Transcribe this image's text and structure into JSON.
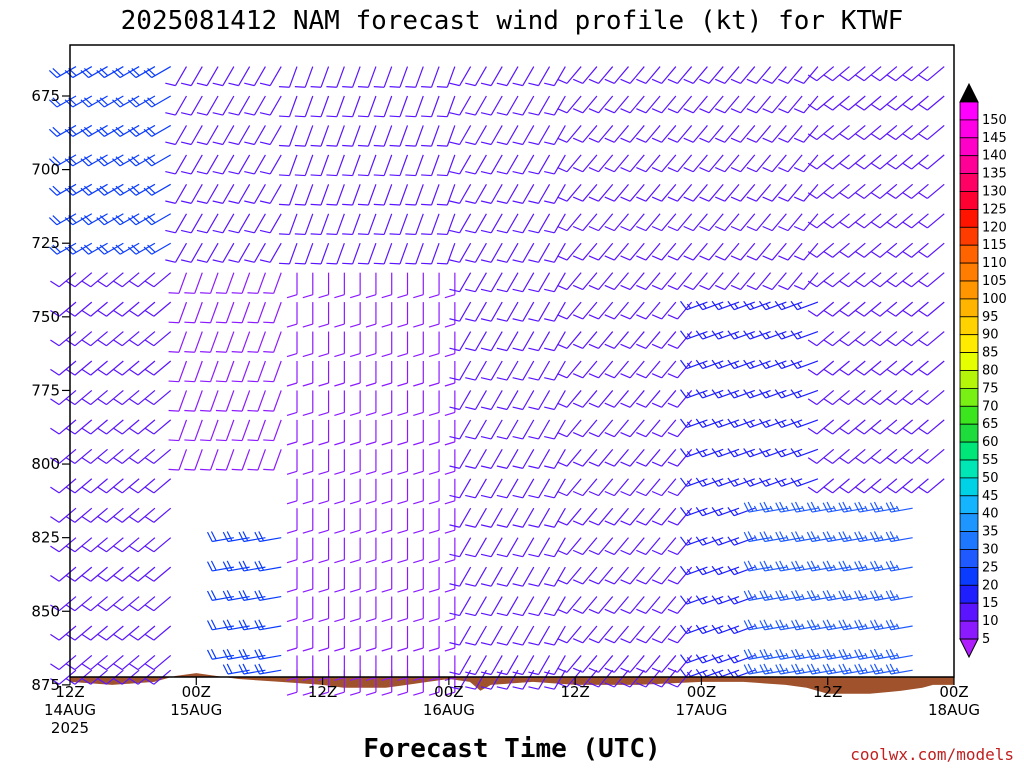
{
  "chart_data": {
    "type": "wind-barb",
    "title": "2025081412 NAM forecast wind profile (kt) for KTWF",
    "xlabel": "Forecast Time (UTC)",
    "ylabel": "",
    "credit": "coolwx.com/models",
    "y_scale": "pressure",
    "y_range": [
      885,
      660
    ],
    "y_ticks": [
      675,
      700,
      725,
      750,
      775,
      800,
      825,
      850,
      875
    ],
    "x_range_hours": [
      0,
      84
    ],
    "x_ticks": [
      {
        "hour": 0,
        "line1": "12Z",
        "line2": "14AUG",
        "line3": "2025"
      },
      {
        "hour": 12,
        "line1": "00Z",
        "line2": "15AUG",
        "line3": ""
      },
      {
        "hour": 24,
        "line1": "12Z",
        "line2": "",
        "line3": ""
      },
      {
        "hour": 36,
        "line1": "00Z",
        "line2": "16AUG",
        "line3": ""
      },
      {
        "hour": 48,
        "line1": "12Z",
        "line2": "",
        "line3": ""
      },
      {
        "hour": 60,
        "line1": "00Z",
        "line2": "17AUG",
        "line3": ""
      },
      {
        "hour": 72,
        "line1": "12Z",
        "line2": "",
        "line3": ""
      },
      {
        "hour": 84,
        "line1": "00Z",
        "line2": "18AUG",
        "line3": ""
      }
    ],
    "colorbar": {
      "labels": [
        5,
        10,
        15,
        20,
        25,
        30,
        35,
        40,
        45,
        50,
        55,
        60,
        65,
        70,
        75,
        80,
        85,
        90,
        95,
        100,
        105,
        110,
        115,
        120,
        125,
        130,
        135,
        140,
        145,
        150
      ],
      "colors": [
        "#8c1aff",
        "#5a14ff",
        "#1e1eff",
        "#0a3cff",
        "#1e5aff",
        "#1e78ff",
        "#1e96ff",
        "#14b4ff",
        "#00d2e6",
        "#00e6b4",
        "#00e678",
        "#1edc3c",
        "#3ce61e",
        "#78f014",
        "#b4f50a",
        "#e6ff00",
        "#ffeb00",
        "#ffd200",
        "#ffb400",
        "#ff9600",
        "#ff7d00",
        "#ff6400",
        "#ff3c00",
        "#ff1400",
        "#ff0032",
        "#ff0064",
        "#ff0096",
        "#ff00c8",
        "#ff00e6",
        "#ff00ff"
      ],
      "under_color": "#b01eff",
      "over_color": "#000000"
    },
    "terrain": [
      {
        "hour": 0,
        "p": 874
      },
      {
        "hour": 4,
        "p": 875
      },
      {
        "hour": 8,
        "p": 874
      },
      {
        "hour": 10,
        "p": 872
      },
      {
        "hour": 12,
        "p": 871
      },
      {
        "hour": 16,
        "p": 873
      },
      {
        "hour": 20,
        "p": 874
      },
      {
        "hour": 24,
        "p": 875
      },
      {
        "hour": 26,
        "p": 876
      },
      {
        "hour": 30,
        "p": 876
      },
      {
        "hour": 32,
        "p": 875
      },
      {
        "hour": 34,
        "p": 874
      },
      {
        "hour": 36,
        "p": 873
      },
      {
        "hour": 38,
        "p": 874
      },
      {
        "hour": 39,
        "p": 877
      },
      {
        "hour": 40,
        "p": 875
      },
      {
        "hour": 44,
        "p": 874
      },
      {
        "hour": 48,
        "p": 875
      },
      {
        "hour": 54,
        "p": 875
      },
      {
        "hour": 60,
        "p": 874
      },
      {
        "hour": 64,
        "p": 874
      },
      {
        "hour": 68,
        "p": 875
      },
      {
        "hour": 70,
        "p": 876
      },
      {
        "hour": 72,
        "p": 878
      },
      {
        "hour": 76,
        "p": 878
      },
      {
        "hour": 79,
        "p": 877
      },
      {
        "hour": 81,
        "p": 876
      },
      {
        "hour": 82,
        "p": 875
      },
      {
        "hour": 84,
        "p": 875
      }
    ],
    "barb_levels": [
      665,
      675,
      685,
      695,
      705,
      715,
      725,
      735,
      745,
      755,
      765,
      775,
      785,
      795,
      805,
      815,
      825,
      835,
      845,
      855,
      865,
      870
    ],
    "barb_hours": [
      0,
      1.5,
      3,
      4.5,
      6,
      7.5,
      9,
      10.5,
      12,
      13.5,
      15,
      16.5,
      18,
      19.5,
      21,
      22.5,
      24,
      25.5,
      27,
      28.5,
      30,
      31.5,
      33,
      34.5,
      36,
      37.5,
      39,
      40.5,
      42,
      43.5,
      45,
      46.5,
      48,
      49.5,
      51,
      52.5,
      54,
      55.5,
      57,
      58.5,
      60,
      61.5,
      63,
      64.5,
      66,
      67.5,
      69,
      70.5,
      72,
      73.5,
      75,
      76.5,
      78,
      79.5,
      81,
      82.5
    ],
    "wind_regimes": [
      {
        "hours": [
          0,
          10
        ],
        "levels": [
          660,
          730
        ],
        "dir_deg": 240,
        "speed_kt": 20
      },
      {
        "hours": [
          0,
          10
        ],
        "levels": [
          730,
          870
        ],
        "dir_deg": 230,
        "speed_kt": 10
      },
      {
        "hours": [
          10,
          20
        ],
        "levels": [
          660,
          730
        ],
        "dir_deg": 210,
        "speed_kt": 10
      },
      {
        "hours": [
          10,
          20
        ],
        "levels": [
          730,
          800
        ],
        "dir_deg": 200,
        "speed_kt": 8
      },
      {
        "hours": [
          14,
          25
        ],
        "levels": [
          820,
          870
        ],
        "dir_deg": 260,
        "speed_kt": 20
      },
      {
        "hours": [
          20,
          37
        ],
        "levels": [
          660,
          730
        ],
        "dir_deg": 200,
        "speed_kt": 10
      },
      {
        "hours": [
          20,
          37
        ],
        "levels": [
          730,
          870
        ],
        "dir_deg": 180,
        "speed_kt": 8
      },
      {
        "hours": [
          37,
          48
        ],
        "levels": [
          660,
          870
        ],
        "dir_deg": 210,
        "speed_kt": 10
      },
      {
        "hours": [
          48,
          60
        ],
        "levels": [
          660,
          870
        ],
        "dir_deg": 220,
        "speed_kt": 10
      },
      {
        "hours": [
          60,
          72
        ],
        "levels": [
          660,
          740
        ],
        "dir_deg": 220,
        "speed_kt": 10
      },
      {
        "hours": [
          60,
          72
        ],
        "levels": [
          740,
          870
        ],
        "dir_deg": 250,
        "speed_kt": 15
      },
      {
        "hours": [
          66,
          80
        ],
        "levels": [
          810,
          870
        ],
        "dir_deg": 260,
        "speed_kt": 25
      },
      {
        "hours": [
          72,
          84
        ],
        "levels": [
          660,
          810
        ],
        "dir_deg": 230,
        "speed_kt": 10
      }
    ]
  }
}
